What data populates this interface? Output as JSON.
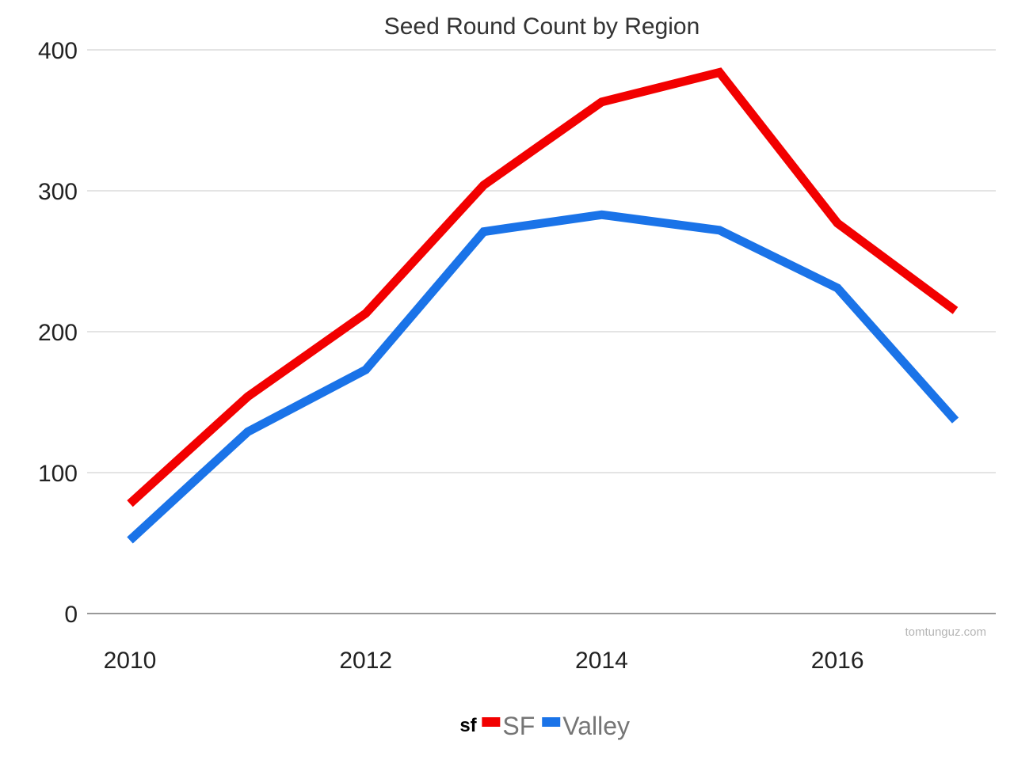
{
  "chart_data": {
    "type": "line",
    "title": "Seed Round Count by Region",
    "xlabel": "",
    "ylabel": "",
    "x": [
      2010,
      2011,
      2012,
      2013,
      2014,
      2015,
      2016,
      2017
    ],
    "x_ticks": [
      "2010",
      "2012",
      "2014",
      "2016"
    ],
    "y_ticks": [
      "0",
      "100",
      "200",
      "300",
      "400"
    ],
    "ylim": [
      0,
      400
    ],
    "xlim": [
      2010,
      2017
    ],
    "grid": true,
    "legend": {
      "title": "sf",
      "position": "bottom"
    },
    "series": [
      {
        "name": "SF",
        "color": "#f20000",
        "values": [
          78,
          154,
          213,
          304,
          363,
          384,
          277,
          215
        ]
      },
      {
        "name": "Valley",
        "color": "#1a73e8",
        "values": [
          52,
          129,
          173,
          271,
          283,
          272,
          231,
          137
        ]
      }
    ],
    "watermark": "tomtunguz.com"
  }
}
